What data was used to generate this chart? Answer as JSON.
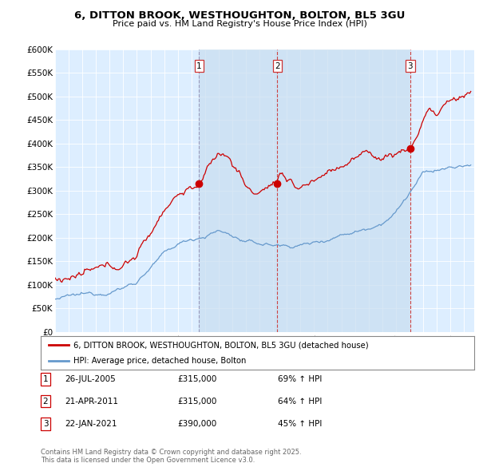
{
  "title": "6, DITTON BROOK, WESTHOUGHTON, BOLTON, BL5 3GU",
  "subtitle": "Price paid vs. HM Land Registry's House Price Index (HPI)",
  "ylim": [
    0,
    600000
  ],
  "yticks": [
    0,
    50000,
    100000,
    150000,
    200000,
    250000,
    300000,
    350000,
    400000,
    450000,
    500000,
    550000,
    600000
  ],
  "xlim_start": 1995.0,
  "xlim_end": 2025.75,
  "legend_line1": "6, DITTON BROOK, WESTHOUGHTON, BOLTON, BL5 3GU (detached house)",
  "legend_line2": "HPI: Average price, detached house, Bolton",
  "sale1_date": "26-JUL-2005",
  "sale1_price": "£315,000",
  "sale1_hpi": "69% ↑ HPI",
  "sale2_date": "21-APR-2011",
  "sale2_price": "£315,000",
  "sale2_hpi": "64% ↑ HPI",
  "sale3_date": "22-JAN-2021",
  "sale3_price": "£390,000",
  "sale3_hpi": "45% ↑ HPI",
  "footer": "Contains HM Land Registry data © Crown copyright and database right 2025.\nThis data is licensed under the Open Government Licence v3.0.",
  "red_color": "#cc0000",
  "blue_color": "#6699cc",
  "vline1_color": "#aaaacc",
  "vline23_color": "#cc4444",
  "bg_color": "#ddeeff",
  "shade_color": "#c8ddf0",
  "sale1_x": 2005.57,
  "sale2_x": 2011.31,
  "sale3_x": 2021.06
}
